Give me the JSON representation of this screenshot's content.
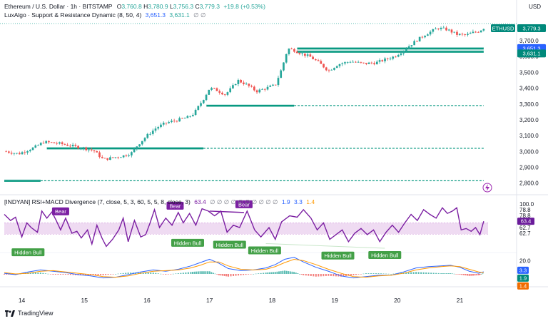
{
  "header": {
    "symbol": "Ethereum / U.S. Dollar · 1h · BITSTAMP",
    "open_label": "O",
    "open": "3,760.8",
    "high_label": "H",
    "high": "3,780.9",
    "low_label": "L",
    "low": "3,756.3",
    "close_label": "C",
    "close": "3,779.3",
    "change": "+19.8 (+0.53%)",
    "indicator": "LuxAlgo · Support & Resistance Dynamic (8, 50, 4)",
    "ind_v1": "3,651.3",
    "ind_v2": "3,631.1",
    "ind_v3": "∅ ∅"
  },
  "sub_header": {
    "indicator": "[INDYAN] RSI+MACD Divergence (7, close, 5, 3, 60, 5, 5, 8, close, 3)",
    "rsi_value": "63.4",
    "nulls": "∅ ∅ ∅ ∅ ∅ ∅ ∅ ∅ ∅ ∅",
    "v1": "1.9",
    "v2": "3.3",
    "v3": "1.4"
  },
  "currency": "USD",
  "branding": "TradingView",
  "colors": {
    "up": "#26a69a",
    "down": "#ef5350",
    "rsi": "#7b1fa2",
    "macd": "#2962ff",
    "signal": "#ff9800",
    "band": "#e1bee7",
    "level": "#089981",
    "label_bg": "#00897b"
  },
  "chart_data": [
    {
      "type": "candlestick",
      "title": "Ethereum / U.S. Dollar · 1h · BITSTAMP",
      "ylabel": "USD",
      "ylim": [
        2740,
        3840
      ],
      "y_ticks": [
        2800,
        2900,
        3000,
        3100,
        3200,
        3300,
        3400,
        3500,
        3600,
        3700
      ],
      "y_tick_labels": [
        "2,800.0",
        "2,900.0",
        "3,000.0",
        "3,100.0",
        "3,200.0",
        "3,300.0",
        "3,400.0",
        "3,500.0",
        "3,600.0",
        "3,700.0"
      ],
      "x_ticks": [
        14,
        15,
        16,
        17,
        18,
        19,
        20,
        21
      ],
      "x_tick_labels": [
        "14",
        "15",
        "16",
        "17",
        "18",
        "19",
        "20",
        "21"
      ],
      "xlim": [
        13.72,
        21.45
      ],
      "anchors": [
        [
          13.75,
          3000
        ],
        [
          13.95,
          2985
        ],
        [
          14.1,
          3010
        ],
        [
          14.2,
          3025
        ],
        [
          14.35,
          3060
        ],
        [
          14.6,
          3050
        ],
        [
          14.8,
          3035
        ],
        [
          15.0,
          3020
        ],
        [
          15.15,
          3005
        ],
        [
          15.3,
          2950
        ],
        [
          15.45,
          2960
        ],
        [
          15.65,
          2975
        ],
        [
          15.75,
          2990
        ],
        [
          15.85,
          3040
        ],
        [
          16.0,
          3100
        ],
        [
          16.15,
          3150
        ],
        [
          16.3,
          3180
        ],
        [
          16.5,
          3200
        ],
        [
          16.65,
          3215
        ],
        [
          16.75,
          3240
        ],
        [
          16.9,
          3330
        ],
        [
          17.0,
          3400
        ],
        [
          17.1,
          3390
        ],
        [
          17.25,
          3360
        ],
        [
          17.35,
          3400
        ],
        [
          17.45,
          3450
        ],
        [
          17.6,
          3420
        ],
        [
          17.75,
          3380
        ],
        [
          17.9,
          3400
        ],
        [
          18.05,
          3420
        ],
        [
          18.15,
          3520
        ],
        [
          18.25,
          3650
        ],
        [
          18.35,
          3640
        ],
        [
          18.45,
          3620
        ],
        [
          18.6,
          3600
        ],
        [
          18.75,
          3560
        ],
        [
          18.9,
          3510
        ],
        [
          19.05,
          3550
        ],
        [
          19.25,
          3570
        ],
        [
          19.45,
          3555
        ],
        [
          19.65,
          3560
        ],
        [
          19.8,
          3580
        ],
        [
          19.95,
          3600
        ],
        [
          20.1,
          3640
        ],
        [
          20.3,
          3700
        ],
        [
          20.45,
          3740
        ],
        [
          20.65,
          3780
        ],
        [
          20.8,
          3770
        ],
        [
          20.95,
          3740
        ],
        [
          21.1,
          3735
        ],
        [
          21.2,
          3750
        ],
        [
          21.3,
          3760
        ],
        [
          21.38,
          3779.3
        ]
      ],
      "candles_count": 180,
      "levels": [
        {
          "value": 3651.3,
          "x_from": 18.4,
          "x_to": 21.38,
          "style": "solid"
        },
        {
          "value": 3631.1,
          "x_from": 18.4,
          "x_to": 21.38,
          "style": "solid"
        },
        {
          "value": 3290,
          "x_from": 16.95,
          "x_to": 18.35,
          "style": "solid"
        },
        {
          "value": 3290,
          "x_from": 18.35,
          "x_to": 21.38,
          "style": "dashed"
        },
        {
          "value": 3020,
          "x_from": 14.4,
          "x_to": 16.9,
          "style": "solid"
        },
        {
          "value": 3020,
          "x_from": 16.9,
          "x_to": 21.38,
          "style": "dashed"
        },
        {
          "value": 2815,
          "x_from": 13.72,
          "x_to": 14.3,
          "style": "solid"
        },
        {
          "value": 2815,
          "x_from": 14.3,
          "x_to": 21.38,
          "style": "dashed"
        }
      ],
      "price_labels": [
        {
          "text": "ETHUSD",
          "value": "3,779.3",
          "price": 3779.3,
          "kind": "last"
        },
        {
          "text": "",
          "value": "3,651.3",
          "price": 3651.3,
          "kind": "level_blue"
        },
        {
          "text": "",
          "value": "3,631.1",
          "price": 3631.1,
          "kind": "level_green"
        }
      ]
    },
    {
      "type": "line",
      "title": "[INDYAN] RSI+MACD Divergence",
      "ylim": [
        0,
        100
      ],
      "y_ticks": [
        100.0
      ],
      "y_tick_labels": [
        "100.0"
      ],
      "series": [
        {
          "name": "RSI",
          "x": [
            13.72,
            13.82,
            13.9,
            14.0,
            14.08,
            14.15,
            14.25,
            14.32,
            14.4,
            14.48,
            14.55,
            14.62,
            14.7,
            14.8,
            14.88,
            14.95,
            15.05,
            15.12,
            15.2,
            15.28,
            15.35,
            15.45,
            15.55,
            15.62,
            15.7,
            15.8,
            15.9,
            15.98,
            16.05,
            16.12,
            16.2,
            16.3,
            16.4,
            16.5,
            16.58,
            16.68,
            16.78,
            16.88,
            16.98,
            17.08,
            17.18,
            17.28,
            17.38,
            17.48,
            17.6,
            17.72,
            17.82,
            17.95,
            18.05,
            18.15,
            18.28,
            18.4,
            18.5,
            18.62,
            18.72,
            18.82,
            18.92,
            19.02,
            19.12,
            19.22,
            19.32,
            19.42,
            19.52,
            19.62,
            19.72,
            19.82,
            19.92,
            20.02,
            20.12,
            20.22,
            20.32,
            20.42,
            20.52,
            20.62,
            20.72,
            20.8,
            20.88,
            20.95,
            21.02,
            21.1,
            21.18,
            21.25,
            21.32,
            21.38
          ],
          "values": [
            78,
            65,
            72,
            30,
            60,
            50,
            40,
            85,
            70,
            83,
            65,
            45,
            70,
            38,
            42,
            28,
            45,
            15,
            55,
            28,
            10,
            25,
            45,
            70,
            20,
            65,
            30,
            35,
            60,
            88,
            50,
            70,
            55,
            82,
            60,
            80,
            55,
            90,
            85,
            75,
            85,
            40,
            55,
            50,
            85,
            45,
            30,
            50,
            25,
            62,
            75,
            72,
            88,
            70,
            45,
            60,
            25,
            35,
            45,
            20,
            38,
            48,
            35,
            45,
            20,
            40,
            55,
            40,
            60,
            78,
            65,
            88,
            78,
            70,
            92,
            80,
            85,
            92,
            45,
            48,
            42,
            50,
            35,
            63.4
          ]
        }
      ],
      "band": [
        36,
        60
      ],
      "band_labels": [
        "62.7",
        "62.7"
      ],
      "right_labels": [
        "78.8",
        "78.8",
        "63.4"
      ],
      "divergences": [
        {
          "label": "Bear",
          "x": 14.62,
          "rsi": 70
        },
        {
          "label": "Bear",
          "x": 16.45,
          "rsi": 82
        },
        {
          "label": "Bear",
          "x": 17.55,
          "rsi": 85
        },
        {
          "label": "Hidden Bull",
          "x": 14.1,
          "rsi": 12
        },
        {
          "label": "Hidden Bull",
          "x": 16.65,
          "rsi": 32
        },
        {
          "label": "Hidden Bull",
          "x": 17.32,
          "rsi": 28
        },
        {
          "label": "Hidden Bull",
          "x": 17.88,
          "rsi": 16
        },
        {
          "label": "Hidden Bull",
          "x": 19.05,
          "rsi": 5
        },
        {
          "label": "Hidden Bull",
          "x": 19.8,
          "rsi": 6
        }
      ]
    },
    {
      "type": "line",
      "title": "MACD",
      "ylim": [
        -15,
        30
      ],
      "y_ticks": [
        20.0
      ],
      "y_tick_labels": [
        "20.0"
      ],
      "series": [
        {
          "name": "MACD",
          "color_key": "macd",
          "x": [
            13.72,
            13.9,
            14.1,
            14.3,
            14.5,
            14.7,
            14.9,
            15.1,
            15.3,
            15.5,
            15.7,
            15.9,
            16.1,
            16.3,
            16.5,
            16.7,
            16.85,
            17.0,
            17.15,
            17.3,
            17.5,
            17.7,
            17.9,
            18.05,
            18.2,
            18.35,
            18.5,
            18.7,
            18.9,
            19.1,
            19.3,
            19.5,
            19.7,
            19.9,
            20.1,
            20.3,
            20.5,
            20.7,
            20.85,
            21.0,
            21.15,
            21.3,
            21.38
          ],
          "values": [
            1,
            -1,
            3,
            6,
            4,
            2,
            -1,
            -3,
            -6,
            -5,
            -1,
            3,
            6,
            4,
            7,
            12,
            17,
            22,
            16,
            8,
            5,
            6,
            9,
            14,
            22,
            25,
            18,
            10,
            4,
            -3,
            -6,
            -4,
            -2,
            -2,
            3,
            9,
            11,
            12,
            13,
            10,
            4,
            1,
            3.3
          ]
        },
        {
          "name": "Signal",
          "color_key": "signal",
          "x": [
            13.72,
            13.9,
            14.1,
            14.3,
            14.5,
            14.7,
            14.9,
            15.1,
            15.3,
            15.5,
            15.7,
            15.9,
            16.1,
            16.3,
            16.5,
            16.7,
            16.85,
            17.0,
            17.15,
            17.3,
            17.5,
            17.7,
            17.9,
            18.05,
            18.2,
            18.35,
            18.5,
            18.7,
            18.9,
            19.1,
            19.3,
            19.5,
            19.7,
            19.9,
            20.1,
            20.3,
            20.5,
            20.7,
            20.85,
            21.0,
            21.15,
            21.3,
            21.38
          ],
          "values": [
            2,
            0,
            1,
            4,
            5,
            3,
            1,
            -1,
            -4,
            -5,
            -3,
            1,
            4,
            5,
            6,
            9,
            13,
            18,
            18,
            12,
            7,
            6,
            7,
            11,
            17,
            22,
            20,
            14,
            7,
            1,
            -4,
            -5,
            -3,
            -2,
            1,
            6,
            9,
            11,
            12,
            11,
            7,
            3,
            1.9
          ]
        }
      ],
      "histogram_value": 1.4,
      "right_labels": [
        "3.3",
        "1.9",
        "1.4"
      ]
    }
  ]
}
